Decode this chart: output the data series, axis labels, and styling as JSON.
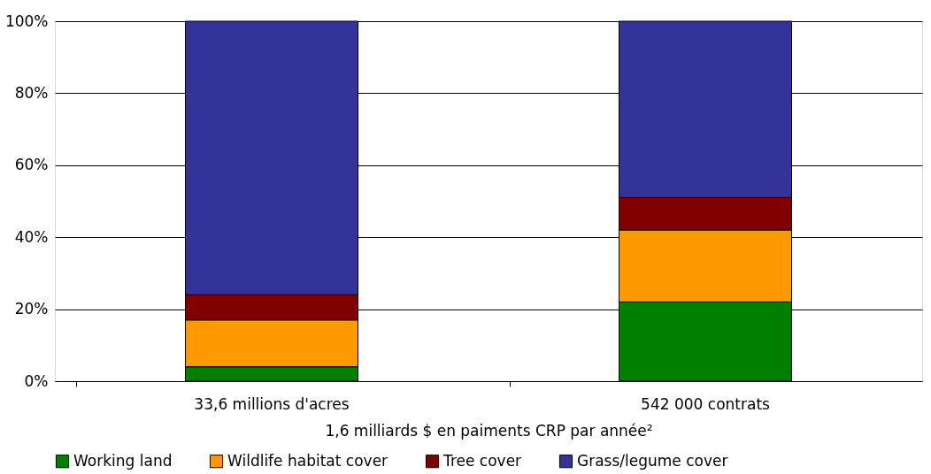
{
  "chart_data": {
    "type": "bar",
    "stacked": true,
    "xlabel": "1,6 milliards $ en paiments CRP par année²",
    "categories": [
      "33,6 millions d'acres",
      "542 000 contrats"
    ],
    "series": [
      {
        "name": "Working land",
        "color": "#008000",
        "values": [
          4,
          22
        ]
      },
      {
        "name": "Wildlife habitat cover",
        "color": "#ff9900",
        "values": [
          13,
          20
        ]
      },
      {
        "name": "Tree cover",
        "color": "#800000",
        "values": [
          7,
          9
        ]
      },
      {
        "name": "Grass/legume cover",
        "color": "#333399",
        "values": [
          76,
          49
        ]
      }
    ],
    "ylim": [
      0,
      100
    ],
    "yticks": [
      {
        "value": 0,
        "label": "0%"
      },
      {
        "value": 20,
        "label": "20%"
      },
      {
        "value": 40,
        "label": "40%"
      },
      {
        "value": 60,
        "label": "60%"
      },
      {
        "value": 80,
        "label": "80%"
      },
      {
        "value": 100,
        "label": "100%"
      }
    ],
    "grid": "y",
    "legend": "bottom"
  }
}
